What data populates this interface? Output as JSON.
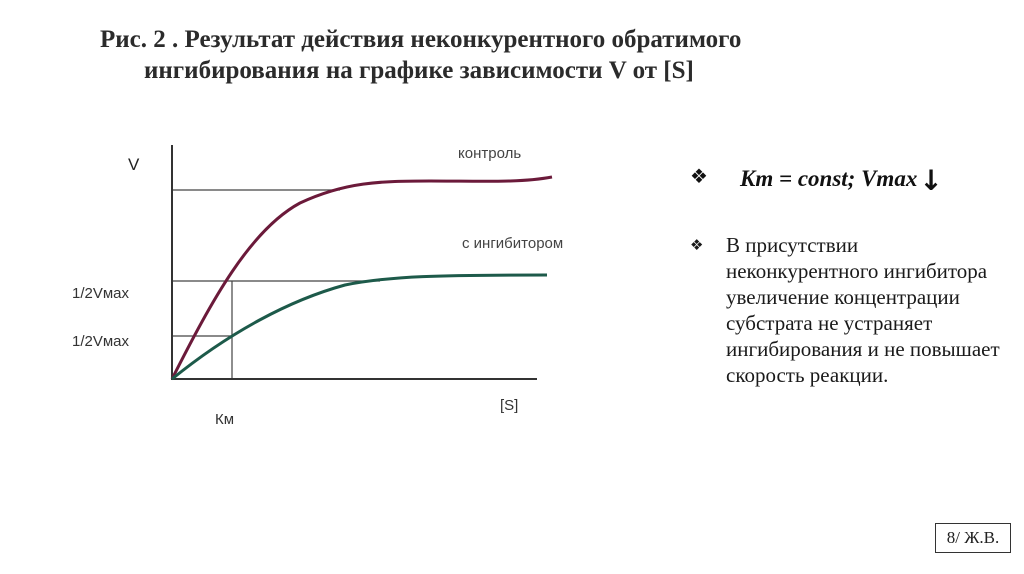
{
  "title": {
    "line1": "Рис. 2 . Результат действия неконкурентного обратимого",
    "line2": "ингибирования на графике зависимости V от [S]"
  },
  "graph": {
    "y_label": "V",
    "x_label": "[S]",
    "curve_labels": {
      "control": "контроль",
      "inhibitor": "с ингибитором"
    },
    "halfvmax_upper": "1/2Vмах",
    "halfvmax_lower": "1/2Vмах",
    "km_label": "Км",
    "colors": {
      "control": "#6b1a3a",
      "inhibitor": "#1d5a4a",
      "axes": "#333333",
      "guides": "#444444"
    }
  },
  "bullets": {
    "b1_formula": "Km = const; Vmax",
    "b1_arrow": "↓",
    "b2_text": "В присутствии неконкурентного ингибитора увеличение концентрации субстрата не устраняет ингибирования и не повышает скорость реакции."
  },
  "footer": {
    "page": "8/ Ж.В."
  }
}
